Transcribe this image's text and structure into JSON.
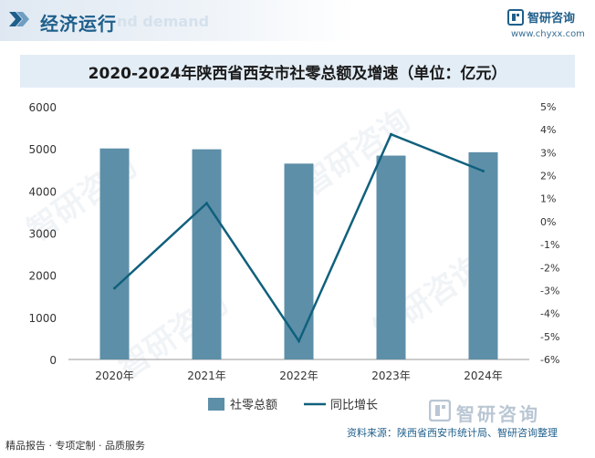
{
  "header": {
    "title": "经济运行",
    "watermark_text": "nd demand",
    "brand_name": "智研咨询",
    "brand_url": "www.chyxx.com"
  },
  "footer": {
    "left_text": "精品报告 · 专项定制 · 品质服务",
    "source_text": "资料来源：陕西省西安市统计局、智研咨询整理",
    "brand": "智研咨询"
  },
  "watermark": "智研咨询",
  "colors": {
    "bar": "#5d8fa8",
    "line": "#10607d",
    "accent": "#1f5f8b"
  },
  "chart_data": {
    "type": "bar",
    "title": "2020-2024年陕西省西安市社零总额及增速（单位：亿元）",
    "categories": [
      "2020年",
      "2021年",
      "2022年",
      "2023年",
      "2024年"
    ],
    "series": [
      {
        "name": "社零总额",
        "type": "bar",
        "axis": "left",
        "values": [
          5010,
          4990,
          4650,
          4840,
          4920
        ]
      },
      {
        "name": "同比增长",
        "type": "line",
        "axis": "right",
        "values": [
          -2.9,
          0.8,
          -5.2,
          3.8,
          2.2
        ]
      }
    ],
    "ylim_left": [
      0,
      6000
    ],
    "yticks_left": [
      "0",
      "1000",
      "2000",
      "3000",
      "4000",
      "5000",
      "6000"
    ],
    "ylim_right": [
      -6,
      5
    ],
    "yticks_right": [
      "-6%",
      "-5%",
      "-4%",
      "-3%",
      "-2%",
      "-1%",
      "0%",
      "1%",
      "2%",
      "3%",
      "4%",
      "5%"
    ],
    "legend_position": "bottom",
    "grid": false
  }
}
